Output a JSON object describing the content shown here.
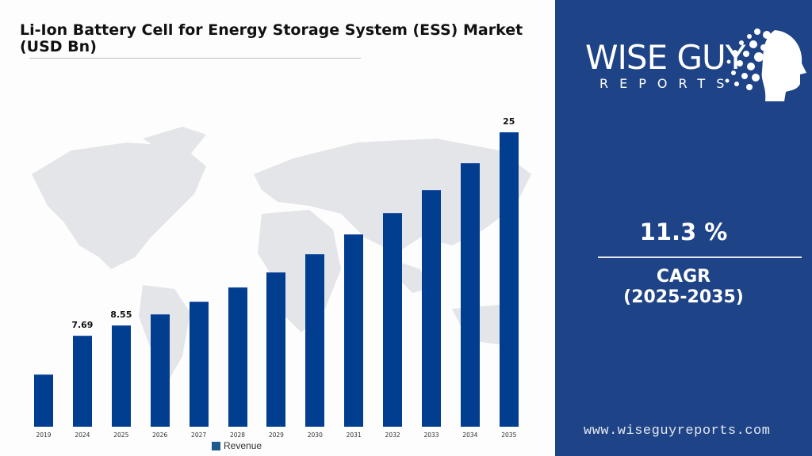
{
  "title": {
    "line1": "Li-Ion Battery Cell for Energy Storage System (ESS) Market",
    "line2": "(USD Bn)"
  },
  "chart_data": {
    "type": "bar",
    "title": "Li-Ion Battery Cell for Energy Storage System (ESS) Market (USD Bn)",
    "xlabel": "",
    "ylabel": "USD Bn",
    "categories": [
      "2019",
      "2024",
      "2025",
      "2026",
      "2027",
      "2028",
      "2029",
      "2030",
      "2031",
      "2032",
      "2033",
      "2034",
      "2035"
    ],
    "series": [
      {
        "name": "Revenue",
        "color": "#023e8f",
        "values": [
          4.4,
          7.69,
          8.55,
          9.52,
          10.6,
          11.8,
          13.1,
          14.6,
          16.3,
          18.1,
          20.1,
          22.4,
          25
        ]
      }
    ],
    "data_labels": {
      "2024": "7.69",
      "2025": "8.55",
      "2035": "25"
    },
    "ylim": [
      0,
      25
    ],
    "grid": false,
    "legend_position": "bottom"
  },
  "legend": {
    "label": "Revenue"
  },
  "brand": {
    "name_main": "WISE GUY",
    "name_sub": "REPORTS",
    "url": "www.wiseguyreports.com",
    "panel_color": "#1f4387"
  },
  "cagr": {
    "value": "11.3 %",
    "label": "CAGR",
    "period": "(2025-2035)"
  }
}
